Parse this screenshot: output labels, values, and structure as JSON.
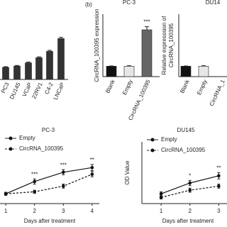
{
  "panel_label": "(b)",
  "chart_data": [
    {
      "type": "bar",
      "categories": [
        "PC3",
        "DU145",
        "VCaP",
        "22RV1",
        "C4-2",
        "LNCaP"
      ],
      "values": [
        0.95,
        1.05,
        1.3,
        1.7,
        2.2,
        3.2
      ],
      "errors": [
        0.05,
        0.05,
        0.06,
        0.07,
        0.08,
        0.1
      ],
      "color": "#333333",
      "ylim": [
        0,
        4
      ]
    },
    {
      "type": "bar",
      "title": "PC-3",
      "ylabel": "CircRNA_100395 expression",
      "categories": [
        "Blank",
        "Empty",
        "CircRNA_100395"
      ],
      "values": [
        1,
        1,
        4.5
      ],
      "errors": [
        0.02,
        0.05,
        0.3
      ],
      "colors": [
        "#111111",
        "#e6e6e6",
        "#666666"
      ],
      "ylim": [
        0,
        6
      ],
      "annotations": [
        {
          "x": "CircRNA_100395",
          "text": "***"
        }
      ]
    },
    {
      "type": "bar",
      "title": "DU14",
      "ylabel": [
        "Relative expresssion of",
        "CircRNA_100395"
      ],
      "categories": [
        "Blank",
        "Empty",
        "CircRNA_1"
      ],
      "values": [
        1,
        1,
        null
      ],
      "errors": [
        0.02,
        0.05,
        null
      ],
      "colors": [
        "#111111",
        "#e6e6e6",
        "#666666"
      ],
      "ylim": [
        0,
        6
      ]
    },
    {
      "type": "line",
      "title": "PC-3",
      "xlabel": "Days after treatment",
      "x": [
        1,
        2,
        3,
        4
      ],
      "xlim": [
        0.8,
        4.25
      ],
      "xticks": [
        1,
        2,
        3,
        4
      ],
      "ylim": [
        0,
        1.2
      ],
      "series": [
        {
          "name": "Empty",
          "color": "#111111",
          "dash": false,
          "values": [
            0.19,
            0.43,
            0.61,
            0.7
          ],
          "errors": [
            0.03,
            0.05,
            0.05,
            0.06
          ]
        },
        {
          "name": "CircRNA_100395",
          "color": "#111111",
          "dash": true,
          "values": [
            0.19,
            0.23,
            0.34,
            0.57
          ],
          "errors": [
            0.03,
            0.03,
            0.04,
            0.05
          ]
        }
      ],
      "annotations": [
        {
          "x": 2,
          "text": "***"
        },
        {
          "x": 3,
          "text": "***"
        },
        {
          "x": 4,
          "text": "**"
        }
      ]
    },
    {
      "type": "line",
      "title": "DU145",
      "ylabel": "OD Value",
      "xlabel": "Days after treatment",
      "x": [
        1,
        2,
        3
      ],
      "xlim": [
        0.333,
        3.533
      ],
      "xticks": [
        1,
        2,
        3
      ],
      "ylim": [
        0,
        1.2
      ],
      "series": [
        {
          "name": "Empty",
          "color": "#111111",
          "dash": false,
          "values": [
            0.19,
            0.4,
            0.54
          ],
          "errors": [
            0.04,
            0.05,
            0.06
          ]
        },
        {
          "name": "CircRNA_100395",
          "color": "#111111",
          "dash": true,
          "values": [
            0.12,
            0.26,
            0.34
          ],
          "errors": [
            0.03,
            0.04,
            0.04
          ]
        }
      ],
      "annotations": [
        {
          "x": 2,
          "text": "*"
        },
        {
          "x": 3,
          "text": "**"
        }
      ]
    }
  ]
}
